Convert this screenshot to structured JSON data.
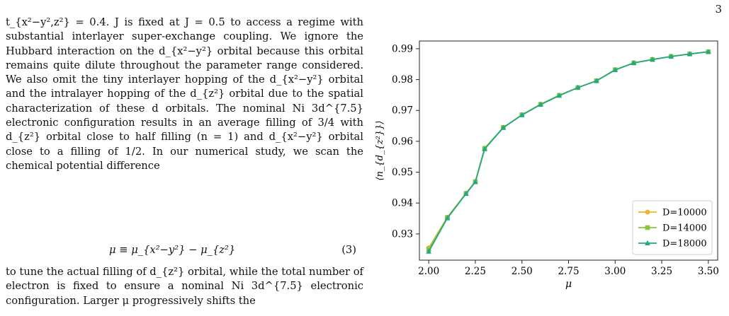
{
  "page_number": "3",
  "text": {
    "paragraph1": "t_{x²−y²,z²} = 0.4. J is fixed at J = 0.5 to access a regime with substantial interlayer super-exchange coupling. We ignore the Hubbard interaction on the d_{x²−y²} orbital because this orbital remains quite dilute throughout the parameter range considered. We also omit the tiny interlayer hopping of the d_{x²−y²} orbital and the intralayer hopping of the d_{z²} orbital due to the spatial characterization of these d orbitals. The nominal Ni 3d^{7.5} electronic configuration results in an average filling of 3/4 with d_{z²} orbital close to half filling (n = 1) and d_{x²−y²} orbital close to a filling of 1/2. In our numerical study, we scan the chemical potential difference",
    "equation": "μ ≡ μ_{x²−y²} − μ_{z²}",
    "equation_number": "(3)",
    "paragraph2": "to tune the actual filling of d_{z²} orbital, while the total number of electron is fixed to ensure a nominal Ni 3d^{7.5} electronic configuration. Larger μ progressively shifts the"
  },
  "chart_data": {
    "type": "line",
    "xlabel": "μ",
    "ylabel": "⟨n_{d_{z²}}⟩",
    "xlim": [
      1.95,
      3.55
    ],
    "ylim": [
      0.9215,
      0.9925
    ],
    "xticks": [
      "2.00",
      "2.25",
      "2.50",
      "2.75",
      "3.00",
      "3.25",
      "3.50"
    ],
    "yticks": [
      "0.93",
      "0.94",
      "0.95",
      "0.96",
      "0.97",
      "0.98",
      "0.99"
    ],
    "x": [
      2.0,
      2.1,
      2.2,
      2.25,
      2.3,
      2.4,
      2.5,
      2.6,
      2.7,
      2.8,
      2.9,
      3.0,
      3.1,
      3.2,
      3.3,
      3.4,
      3.5
    ],
    "legend_position": "bottom-right",
    "series": [
      {
        "name": "D=10000",
        "color": "#f3b127",
        "marker": "circle",
        "values": [
          0.9255,
          0.9354,
          0.9432,
          0.947,
          0.9578,
          0.9645,
          0.9686,
          0.972,
          0.9749,
          0.9774,
          0.9796,
          0.9832,
          0.9854,
          0.9865,
          0.9875,
          0.9883,
          0.989
        ]
      },
      {
        "name": "D=14000",
        "color": "#8cc43c",
        "marker": "square",
        "values": [
          0.925,
          0.9353,
          0.9431,
          0.9469,
          0.9577,
          0.9645,
          0.9686,
          0.972,
          0.9749,
          0.9774,
          0.9796,
          0.9832,
          0.9854,
          0.9865,
          0.9875,
          0.9883,
          0.989
        ]
      },
      {
        "name": "D=18000",
        "color": "#22a884",
        "marker": "triangle",
        "values": [
          0.9243,
          0.9351,
          0.943,
          0.9468,
          0.9575,
          0.9644,
          0.9685,
          0.9719,
          0.9748,
          0.9774,
          0.9796,
          0.9831,
          0.9854,
          0.9865,
          0.9875,
          0.9883,
          0.989
        ]
      }
    ]
  }
}
